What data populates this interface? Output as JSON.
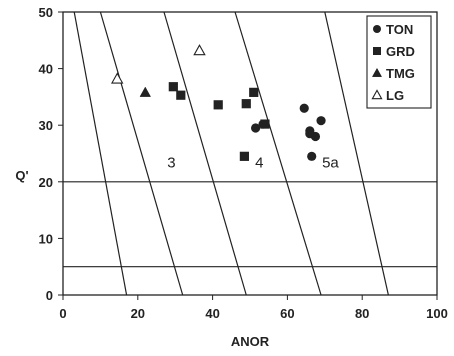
{
  "chart_data": {
    "type": "scatter",
    "xlabel": "ANOR",
    "ylabel": "Q'",
    "xlim": [
      0,
      100
    ],
    "ylim": [
      0,
      50
    ],
    "x_ticks": [
      "0",
      "20",
      "40",
      "60",
      "80",
      "100"
    ],
    "y_ticks": [
      "0",
      "10",
      "20",
      "30",
      "40",
      "50"
    ],
    "grid": false,
    "legend_position": "top-right",
    "series": [
      {
        "name": "TON",
        "marker": "circle-filled",
        "color": "#222222",
        "points": [
          [
            64.5,
            33
          ],
          [
            66,
            29
          ],
          [
            66,
            28.5
          ],
          [
            67.5,
            28
          ],
          [
            69,
            30.8
          ],
          [
            66.5,
            24.5
          ],
          [
            51.5,
            29.5
          ],
          [
            53.5,
            30.2
          ]
        ]
      },
      {
        "name": "GRD",
        "marker": "square-filled",
        "color": "#222222",
        "points": [
          [
            29.5,
            36.8
          ],
          [
            31.5,
            35.3
          ],
          [
            41.5,
            33.6
          ],
          [
            49,
            33.8
          ],
          [
            51,
            35.8
          ],
          [
            54,
            30.2
          ],
          [
            48.5,
            24.5
          ]
        ]
      },
      {
        "name": "TMG",
        "marker": "triangle-filled",
        "color": "#222222",
        "points": [
          [
            22,
            35.8
          ]
        ]
      },
      {
        "name": "LG",
        "marker": "triangle-open",
        "color": "#222222",
        "points": [
          [
            14.5,
            38.2
          ],
          [
            36.5,
            43.2
          ]
        ]
      }
    ],
    "reference_lines": {
      "horizontal": [
        20,
        5
      ],
      "boundaries": [
        {
          "from": [
            3,
            50
          ],
          "to": [
            17,
            0
          ]
        },
        {
          "from": [
            10,
            50
          ],
          "to": [
            32,
            0
          ]
        },
        {
          "from": [
            27,
            50
          ],
          "to": [
            49,
            0
          ]
        },
        {
          "from": [
            46,
            50
          ],
          "to": [
            69,
            0
          ]
        },
        {
          "from": [
            70,
            50
          ],
          "to": [
            87,
            0
          ]
        }
      ]
    },
    "field_labels": [
      {
        "text": "3",
        "x": 29,
        "y": 22.5
      },
      {
        "text": "4",
        "x": 52.5,
        "y": 22.5
      },
      {
        "text": "5a",
        "x": 71.5,
        "y": 22.5
      }
    ]
  }
}
